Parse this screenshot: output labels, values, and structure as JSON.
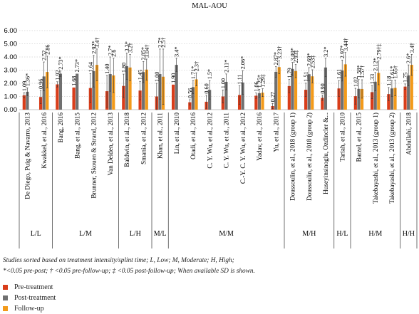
{
  "colors": {
    "pre": "#d93d1a",
    "post": "#707070",
    "follow": "#f39a1a"
  },
  "footnotes": [
    "Studies sorted based on treatment intensity/splint time; L, Low; M, Moderate; H, High;",
    "*<0.05 pre-post; † <0.05 pre-follow-up; ‡ <0.05 post-follow-up; When available SD is shown."
  ],
  "chart_data": {
    "type": "bar",
    "title": "MAL-AOU",
    "ylim": [
      0,
      6
    ],
    "yticks": [
      "0.00",
      "1.00",
      "2.00",
      "3.00",
      "4.00",
      "5.00",
      "6.00"
    ],
    "grid": true,
    "legend_position": "bottom-left",
    "series": [
      {
        "key": "pre",
        "name": "Pre-treatment"
      },
      {
        "key": "post",
        "name": "Post-treatment"
      },
      {
        "key": "follow",
        "name": "Follow-up"
      }
    ],
    "studies": [
      {
        "label": "De Diego, Puig & Navarro, 2013",
        "values": [
          1.09,
          1.36,
          null
        ],
        "labels": [
          "1.09",
          "1.36*",
          ""
        ],
        "sd": [
          0.2,
          0.3,
          null
        ]
      },
      {
        "label": "Kwakkel, et al., 2016",
        "values": [
          0.96,
          2.52,
          2.86
        ],
        "labels": [
          "0.96",
          "2.52",
          "2.86"
        ],
        "sd": [
          0.5,
          1.1,
          1.2
        ]
      },
      {
        "label": "Bang, 2016",
        "values": [
          1.92,
          2.73,
          null
        ],
        "labels": [
          "1.92",
          "2.73*",
          ""
        ],
        "sd": [
          0.2,
          0.2,
          null
        ]
      },
      {
        "label": "Bang, et al., 2015",
        "values": [
          1.68,
          2.73,
          null
        ],
        "labels": [
          "1.68",
          "2.73*",
          ""
        ],
        "sd": [
          null,
          null,
          null
        ]
      },
      {
        "label": "Brunner, Skouen & Strand, 2012",
        "values": [
          1.64,
          2.92,
          3.4
        ],
        "labels": [
          "1.64",
          "2.92*",
          "3.4†"
        ],
        "sd": [
          1.1,
          1.2,
          1.2
        ]
      },
      {
        "label": "Van Delden, et al., 2013",
        "values": [
          1.4,
          2.7,
          2.6
        ],
        "labels": [
          "1.40",
          "2.7*",
          "2.6"
        ],
        "sd": [
          1.2,
          1.3,
          1.3
        ]
      },
      {
        "label": "Baldwin, et al., 2018",
        "values": [
          1.8,
          3.3,
          3.2
        ],
        "labels": [
          "1.80",
          "3.3*",
          "3.2†"
        ],
        "sd": [
          0.9,
          1.0,
          1.0
        ]
      },
      {
        "label": "Smania, et al., 2012",
        "values": [
          1.45,
          2.85,
          3.04
        ],
        "labels": [
          "1.45",
          "2.85*",
          "3.04†"
        ],
        "sd": [
          0.7,
          0.8,
          0.8
        ]
      },
      {
        "label": "Khan, et al., 2011",
        "values": [
          1.0,
          2.7,
          2.5
        ],
        "labels": [
          "1.00",
          "2.7*",
          "2.5†"
        ],
        "sd": [
          1.0,
          1.9,
          2.1
        ]
      },
      {
        "label": "Lin, et al., 2010",
        "values": [
          1.9,
          3.4,
          null
        ],
        "labels": [
          "1.90",
          "3.4*",
          ""
        ],
        "sd": [
          null,
          0.5,
          null
        ]
      },
      {
        "label": "Otadi, et al., 2016",
        "values": [
          0.56,
          1.71,
          2.3
        ],
        "labels": [
          "0.56",
          "1.71*",
          "2.3†"
        ],
        "sd": [
          0.2,
          0.5,
          0.5
        ]
      },
      {
        "label": "C. Y. Wu, et al., 2012",
        "values": [
          0.6,
          1.5,
          null
        ],
        "labels": [
          "0.60",
          "1.5*",
          ""
        ],
        "sd": [
          0.5,
          0.7,
          null
        ]
      },
      {
        "label": "C. Y. Wu, et al., 2011",
        "values": [
          1.0,
          2.11,
          null
        ],
        "labels": [
          "1.00",
          "2.11*",
          ""
        ],
        "sd": [
          0.5,
          0.6,
          null
        ]
      },
      {
        "label": "C.-Y. C. Y. Wu, et al., 2012",
        "values": [
          1.11,
          2.06,
          null
        ],
        "labels": [
          "1.11",
          "2.06*",
          ""
        ],
        "sd": [
          0.7,
          0.9,
          null
        ]
      },
      {
        "label": "Yadav, et al., 2016",
        "values": [
          1.06,
          1.25,
          1.29
        ],
        "labels": [
          "1.06",
          "1.25*",
          "1.29‡"
        ],
        "sd": [
          0.2,
          0.3,
          0.3
        ]
      },
      {
        "label": "Yu, et al., 2017",
        "values": [
          0.27,
          2.87,
          3.23
        ],
        "labels": [
          "0.27",
          "2.87*",
          "3.23†"
        ],
        "sd": [
          0.2,
          0.4,
          0.5
        ]
      },
      {
        "label": "Doussoulin, et al., 2018 (group 1)",
        "values": [
          1.79,
          3.09,
          2.93
        ],
        "labels": [
          "1.79",
          "3.09*",
          "2.93‡"
        ],
        "sd": [
          0.5,
          0.5,
          0.5
        ]
      },
      {
        "label": "Doussoulin, et al., 2018 (group 2)",
        "values": [
          1.51,
          2.69,
          2.53
        ],
        "labels": [
          "1.51",
          "2.69*",
          "2.53‡"
        ],
        "sd": [
          0.5,
          0.5,
          0.5
        ]
      },
      {
        "label": "Huseyinsinoglu, Ozdincler &...",
        "values": [
          0.9,
          3.2,
          null
        ],
        "labels": [
          "0.90",
          "3.2*",
          ""
        ],
        "sd": [
          0.2,
          0.7,
          null
        ]
      },
      {
        "label": "Tariah, et al., 2010",
        "values": [
          1.61,
          2.97,
          3.44
        ],
        "labels": [
          "1.61",
          "2.97*",
          "3.44†"
        ],
        "sd": [
          0.6,
          0.8,
          0.9
        ]
      },
      {
        "label": "Barzel, et al., 2015",
        "values": [
          1.02,
          1.58,
          1.57
        ],
        "labels": [
          "1.02",
          "1.58*",
          "1.57†"
        ],
        "sd": [
          0.6,
          0.7,
          0.7
        ]
      },
      {
        "label": "Takebayashi, et al., 2013 (group 1)",
        "values": [
          1.33,
          2.12,
          2.79
        ],
        "labels": [
          "1.33",
          "2.12*",
          "2.79†‡"
        ],
        "sd": [
          0.5,
          0.7,
          0.9
        ]
      },
      {
        "label": "Takebayashi, et al., 2013 (group 2)",
        "values": [
          1.18,
          1.61,
          1.65
        ],
        "labels": [
          "1.18",
          "1.61*",
          "1.65†"
        ],
        "sd": [
          0.5,
          0.6,
          0.6
        ]
      },
      {
        "label": "Abdullahi, 2018",
        "values": [
          1.75,
          2.6,
          3.4
        ],
        "labels": [
          "1.75",
          "2.6*",
          "3.4†"
        ],
        "sd": [
          0.2,
          0.8,
          0.8
        ]
      }
    ],
    "groups": [
      {
        "label": "L/L",
        "count": 2
      },
      {
        "label": "L/M",
        "count": 4
      },
      {
        "label": "L/H",
        "count": 2
      },
      {
        "label": "M/L",
        "count": 1
      },
      {
        "label": "M/M",
        "count": 7
      },
      {
        "label": "M/H",
        "count": 3
      },
      {
        "label": "H/L",
        "count": 1
      },
      {
        "label": "H/M",
        "count": 3
      },
      {
        "label": "H/H",
        "count": 1
      }
    ]
  }
}
